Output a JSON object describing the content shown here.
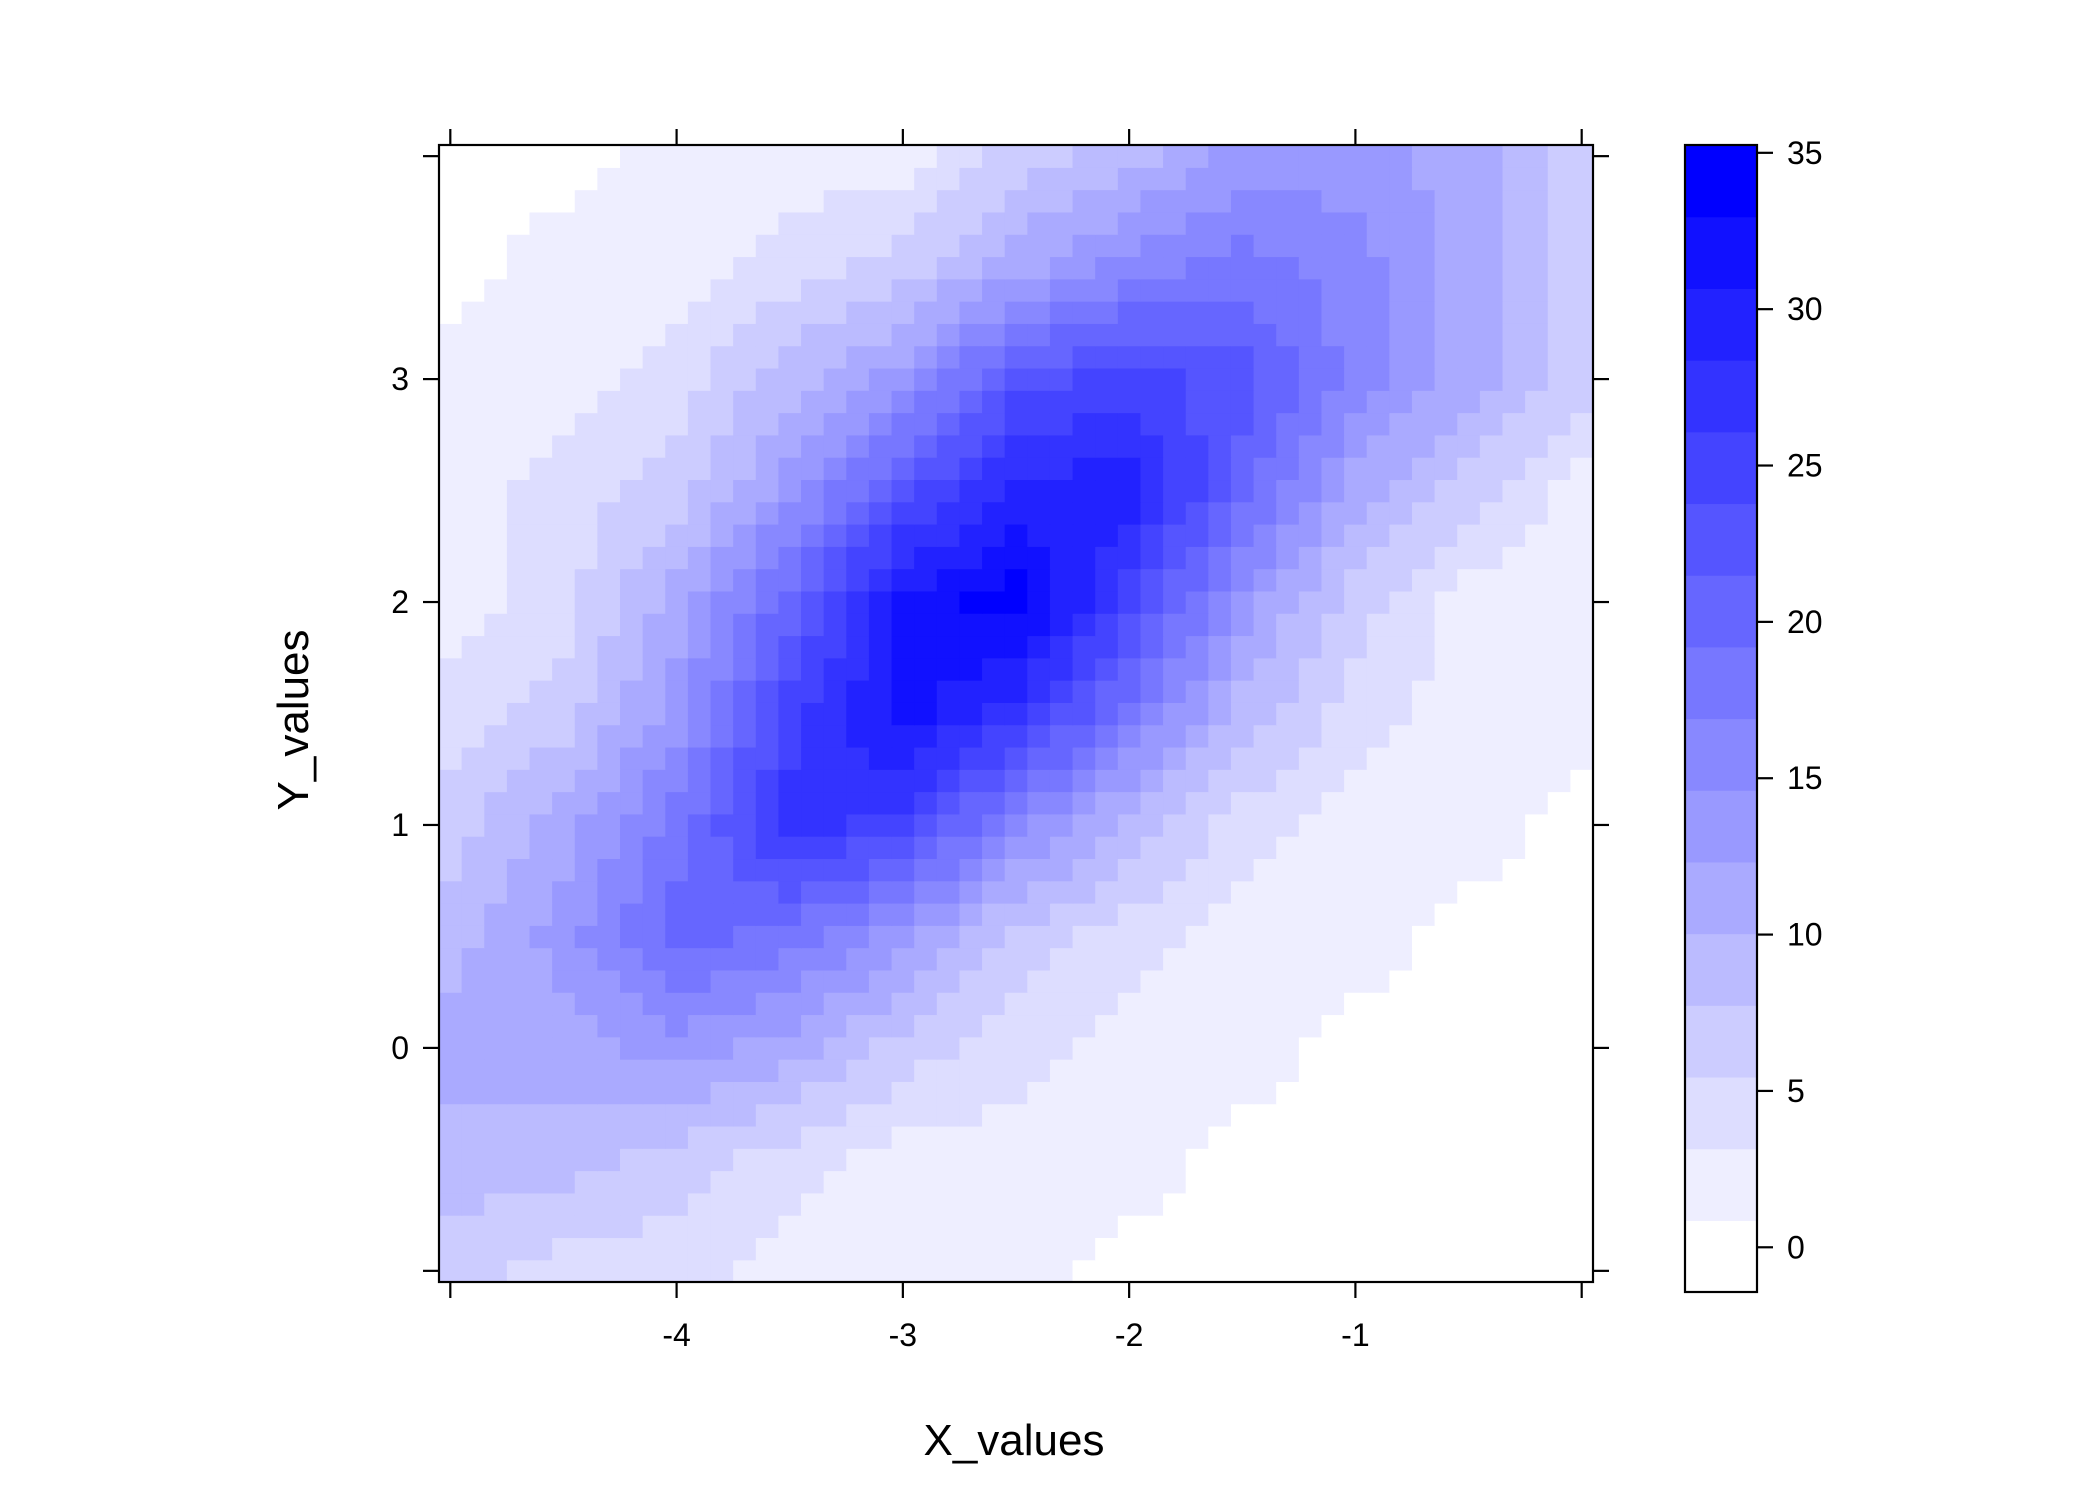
{
  "chart_data": {
    "type": "heatmap",
    "title": "",
    "xlabel": "X_values",
    "ylabel": "Y_values",
    "xlim": [
      -5.05,
      0.05
    ],
    "ylim": [
      -1.05,
      4.05
    ],
    "cell_step": 0.1,
    "x_ticks": [
      {
        "value": -5,
        "label": ""
      },
      {
        "value": -4,
        "label": "-4"
      },
      {
        "value": -3,
        "label": "-3"
      },
      {
        "value": -2,
        "label": "-2"
      },
      {
        "value": -1,
        "label": "-1"
      },
      {
        "value": 0,
        "label": ""
      }
    ],
    "y_ticks": [
      {
        "value": -1,
        "label": ""
      },
      {
        "value": 0,
        "label": "0"
      },
      {
        "value": 1,
        "label": "1"
      },
      {
        "value": 2,
        "label": "2"
      },
      {
        "value": 3,
        "label": "3"
      },
      {
        "value": 4,
        "label": ""
      }
    ],
    "grid_x": [
      -5,
      -4.5,
      -4,
      -3.5,
      -3,
      -2.5,
      -2,
      -1.5,
      -1,
      -0.5,
      0
    ],
    "grid_y": [
      -1,
      -0.5,
      0,
      0.5,
      1,
      1.5,
      2,
      2.5,
      3,
      3.5,
      4
    ],
    "z": [
      [
        6.6,
        4.3,
        4.3,
        2,
        2,
        2,
        0,
        0,
        0,
        0,
        0
      ],
      [
        8.9,
        8.9,
        6.6,
        4.3,
        2,
        2,
        2,
        0,
        0,
        0,
        0
      ],
      [
        11.2,
        11.2,
        13.5,
        11.2,
        6.6,
        4.3,
        2,
        2,
        0,
        0,
        0
      ],
      [
        8.9,
        13.5,
        20.3,
        18,
        13.5,
        6.6,
        4.3,
        2,
        2,
        0,
        0
      ],
      [
        6.6,
        11.2,
        18,
        27.2,
        24.9,
        15.8,
        8.9,
        4.3,
        2,
        2,
        0
      ],
      [
        4.3,
        6.6,
        13.5,
        24.9,
        31.8,
        27.2,
        18,
        8.9,
        4.3,
        2,
        2
      ],
      [
        2,
        4.3,
        11.2,
        20.3,
        31.8,
        34,
        24.9,
        13.5,
        6.6,
        2,
        2
      ],
      [
        2,
        4.3,
        6.6,
        13.5,
        22.6,
        29.5,
        29.5,
        20.3,
        11.2,
        6.6,
        2
      ],
      [
        2,
        2,
        4.3,
        8.9,
        13.5,
        22.6,
        24.9,
        22.6,
        15.8,
        11.2,
        6.6
      ],
      [
        0,
        2,
        2,
        4.3,
        6.6,
        11.2,
        15.8,
        18,
        15.8,
        11.2,
        6.6
      ],
      [
        0,
        0,
        2,
        2,
        2,
        6.6,
        8.9,
        13.5,
        13.5,
        11.2,
        6.6
      ]
    ],
    "colorkey": {
      "range": [
        -1.43,
        35.25
      ],
      "levels": 16,
      "low_color": "#ffffff",
      "high_color": "#0000ff",
      "ticks": [
        {
          "value": 0,
          "label": "0"
        },
        {
          "value": 5,
          "label": "5"
        },
        {
          "value": 10,
          "label": "10"
        },
        {
          "value": 15,
          "label": "15"
        },
        {
          "value": 20,
          "label": "20"
        },
        {
          "value": 25,
          "label": "25"
        },
        {
          "value": 30,
          "label": "30"
        },
        {
          "value": 35,
          "label": "35"
        }
      ]
    },
    "grid": false,
    "legend": "right"
  }
}
